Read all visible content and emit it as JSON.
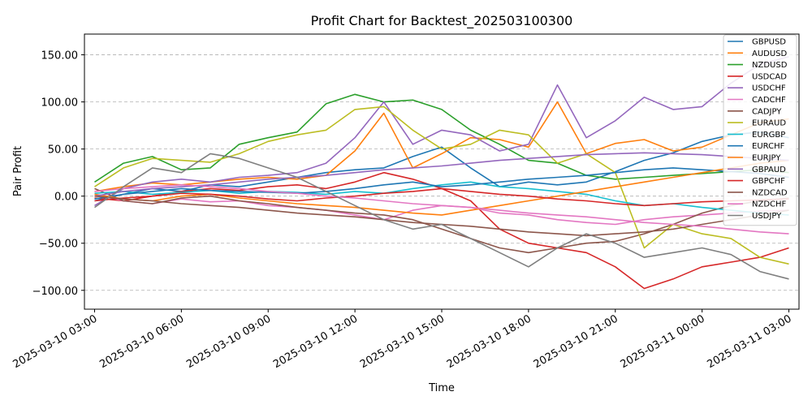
{
  "chart_data": {
    "type": "line",
    "title": "Profit Chart for Backtest_202503100300",
    "xlabel": "Time",
    "ylabel": "Pair Profit",
    "xlim": [
      -0.35,
      24.35
    ],
    "ylim": [
      -120,
      172
    ],
    "x_ticks": [
      {
        "value": 0,
        "label": "2025-03-10 03:00"
      },
      {
        "value": 3,
        "label": "2025-03-10 06:00"
      },
      {
        "value": 6,
        "label": "2025-03-10 09:00"
      },
      {
        "value": 9,
        "label": "2025-03-10 12:00"
      },
      {
        "value": 12,
        "label": "2025-03-10 15:00"
      },
      {
        "value": 15,
        "label": "2025-03-10 18:00"
      },
      {
        "value": 18,
        "label": "2025-03-10 21:00"
      },
      {
        "value": 21,
        "label": "2025-03-11 00:00"
      },
      {
        "value": 24,
        "label": "2025-03-11 03:00"
      }
    ],
    "y_ticks": [
      {
        "value": -100,
        "label": "−100.00"
      },
      {
        "value": -50,
        "label": "−50.00"
      },
      {
        "value": 0,
        "label": "0.00"
      },
      {
        "value": 50,
        "label": "50.00"
      },
      {
        "value": 100,
        "label": "100.00"
      },
      {
        "value": 150,
        "label": "150.00"
      }
    ],
    "grid": "y-dashed",
    "legend_position": "top-right",
    "series": [
      {
        "name": "GBPUSD",
        "color": "#1f77b4",
        "x": [
          0,
          1,
          2,
          3,
          4,
          5,
          6,
          7,
          8,
          9,
          10,
          11,
          12,
          13,
          14,
          15,
          16,
          17,
          18,
          19,
          20,
          21,
          22,
          23,
          24
        ],
        "y": [
          -5,
          2,
          8,
          5,
          12,
          10,
          15,
          20,
          25,
          28,
          30,
          42,
          52,
          30,
          10,
          15,
          12,
          15,
          26,
          38,
          46,
          58,
          65,
          68,
          62
        ]
      },
      {
        "name": "AUDUSD",
        "color": "#ff7f0e",
        "x": [
          0,
          1,
          2,
          3,
          4,
          5,
          6,
          7,
          8,
          9,
          10,
          11,
          12,
          13,
          14,
          15,
          16,
          17,
          18,
          19,
          20,
          21,
          22,
          23,
          24
        ],
        "y": [
          5,
          10,
          14,
          12,
          15,
          18,
          20,
          18,
          22,
          48,
          88,
          30,
          45,
          62,
          60,
          52,
          100,
          45,
          56,
          60,
          48,
          52,
          65,
          78,
          82
        ]
      },
      {
        "name": "NZDUSD",
        "color": "#2ca02c",
        "x": [
          0,
          1,
          2,
          3,
          4,
          5,
          6,
          7,
          8,
          9,
          10,
          11,
          12,
          13,
          14,
          15,
          16,
          17,
          18,
          19,
          20,
          21,
          22,
          23,
          24
        ],
        "y": [
          15,
          35,
          42,
          28,
          30,
          55,
          62,
          68,
          98,
          108,
          100,
          102,
          92,
          70,
          55,
          38,
          35,
          22,
          18,
          20,
          22,
          24,
          26,
          28,
          25
        ]
      },
      {
        "name": "USDCAD",
        "color": "#d62728",
        "x": [
          0,
          1,
          2,
          3,
          4,
          5,
          6,
          7,
          8,
          9,
          10,
          11,
          12,
          13,
          14,
          15,
          16,
          17,
          18,
          19,
          20,
          21,
          22,
          23,
          24
        ],
        "y": [
          -2,
          -5,
          0,
          5,
          8,
          6,
          10,
          12,
          8,
          15,
          25,
          18,
          8,
          -5,
          -35,
          -50,
          -55,
          -60,
          -75,
          -98,
          -88,
          -75,
          -70,
          -65,
          -55
        ]
      },
      {
        "name": "USDCHF",
        "color": "#9467bd",
        "x": [
          0,
          1,
          2,
          3,
          4,
          5,
          6,
          7,
          8,
          9,
          10,
          11,
          12,
          13,
          14,
          15,
          16,
          17,
          18,
          19,
          20,
          21,
          22,
          23,
          24
        ],
        "y": [
          -10,
          8,
          15,
          18,
          15,
          20,
          22,
          25,
          35,
          62,
          100,
          55,
          70,
          65,
          48,
          55,
          118,
          62,
          80,
          105,
          92,
          95,
          120,
          140,
          148
        ]
      },
      {
        "name": "CADCHF",
        "color": "#e377c2",
        "x": [
          0,
          1,
          2,
          3,
          4,
          5,
          6,
          7,
          8,
          9,
          10,
          11,
          12,
          13,
          14,
          15,
          16,
          17,
          18,
          19,
          20,
          21,
          22,
          23,
          24
        ],
        "y": [
          2,
          -5,
          -8,
          -3,
          -6,
          -5,
          -10,
          -12,
          -15,
          -20,
          -25,
          -15,
          -10,
          -12,
          -18,
          -20,
          -25,
          -28,
          -30,
          -25,
          -22,
          -20,
          -18,
          -16,
          -15
        ]
      },
      {
        "name": "CADJPY",
        "color": "#8c564b",
        "x": [
          0,
          1,
          2,
          3,
          4,
          5,
          6,
          7,
          8,
          9,
          10,
          11,
          12,
          13,
          14,
          15,
          16,
          17,
          18,
          19,
          20,
          21,
          22,
          23,
          24
        ],
        "y": [
          8,
          -5,
          -8,
          -2,
          0,
          -5,
          -8,
          -12,
          -15,
          -18,
          -20,
          -25,
          -35,
          -45,
          -55,
          -60,
          -55,
          -50,
          -48,
          -40,
          -30,
          -18,
          -10,
          -5,
          -2
        ]
      },
      {
        "name": "EURAUD",
        "color": "#bcbd22",
        "x": [
          0,
          1,
          2,
          3,
          4,
          5,
          6,
          7,
          8,
          9,
          10,
          11,
          12,
          13,
          14,
          15,
          16,
          17,
          18,
          19,
          20,
          21,
          22,
          23,
          24
        ],
        "y": [
          10,
          30,
          40,
          38,
          36,
          45,
          58,
          65,
          70,
          92,
          95,
          70,
          50,
          55,
          70,
          65,
          35,
          45,
          25,
          -55,
          -30,
          -40,
          -45,
          -65,
          -72
        ]
      },
      {
        "name": "EURGBP",
        "color": "#17becf",
        "x": [
          0,
          1,
          2,
          3,
          4,
          5,
          6,
          7,
          8,
          9,
          10,
          11,
          12,
          13,
          14,
          15,
          16,
          17,
          18,
          19,
          20,
          21,
          22,
          23,
          24
        ],
        "y": [
          3,
          5,
          2,
          4,
          6,
          3,
          5,
          4,
          2,
          5,
          3,
          8,
          12,
          15,
          10,
          8,
          5,
          2,
          -5,
          -10,
          -8,
          -12,
          -15,
          -18,
          -20
        ]
      },
      {
        "name": "EURCHF",
        "color": "#1f77b4",
        "x": [
          0,
          1,
          2,
          3,
          4,
          5,
          6,
          7,
          8,
          9,
          10,
          11,
          12,
          13,
          14,
          15,
          16,
          17,
          18,
          19,
          20,
          21,
          22,
          23,
          24
        ],
        "y": [
          -3,
          2,
          5,
          8,
          6,
          5,
          4,
          3,
          5,
          8,
          12,
          15,
          10,
          12,
          15,
          18,
          20,
          22,
          25,
          28,
          30,
          28,
          26,
          24,
          20
        ]
      },
      {
        "name": "EURJPY",
        "color": "#ff7f0e",
        "x": [
          0,
          1,
          2,
          3,
          4,
          5,
          6,
          7,
          8,
          9,
          10,
          11,
          12,
          13,
          14,
          15,
          16,
          17,
          18,
          19,
          20,
          21,
          22,
          23,
          24
        ],
        "y": [
          2,
          -3,
          -5,
          0,
          2,
          -2,
          -5,
          -8,
          -10,
          -12,
          -15,
          -18,
          -20,
          -15,
          -10,
          -5,
          0,
          5,
          10,
          15,
          20,
          25,
          30,
          35,
          38
        ]
      },
      {
        "name": "GBPAUD",
        "color": "#9467bd",
        "x": [
          0,
          1,
          2,
          3,
          4,
          5,
          6,
          7,
          8,
          9,
          10,
          11,
          12,
          13,
          14,
          15,
          16,
          17,
          18,
          19,
          20,
          21,
          22,
          23,
          24
        ],
        "y": [
          0,
          5,
          8,
          10,
          12,
          15,
          18,
          20,
          22,
          25,
          28,
          30,
          32,
          35,
          38,
          40,
          42,
          44,
          45,
          46,
          45,
          44,
          42,
          40,
          38
        ]
      },
      {
        "name": "GBPCHF",
        "color": "#d62728",
        "x": [
          0,
          1,
          2,
          3,
          4,
          5,
          6,
          7,
          8,
          9,
          10,
          11,
          12,
          13,
          14,
          15,
          16,
          17,
          18,
          19,
          20,
          21,
          22,
          23,
          24
        ],
        "y": [
          -5,
          -2,
          0,
          3,
          2,
          0,
          -3,
          -5,
          -2,
          0,
          3,
          5,
          8,
          5,
          2,
          0,
          -3,
          -5,
          -8,
          -10,
          -8,
          -6,
          -5,
          -4,
          -3
        ]
      },
      {
        "name": "NZDCAD",
        "color": "#8c564b",
        "x": [
          0,
          1,
          2,
          3,
          4,
          5,
          6,
          7,
          8,
          9,
          10,
          11,
          12,
          13,
          14,
          15,
          16,
          17,
          18,
          19,
          20,
          21,
          22,
          23,
          24
        ],
        "y": [
          0,
          -3,
          -5,
          -8,
          -10,
          -12,
          -15,
          -18,
          -20,
          -22,
          -25,
          -28,
          -30,
          -32,
          -35,
          -38,
          -40,
          -42,
          -40,
          -38,
          -35,
          -30,
          -25,
          -20,
          -15
        ]
      },
      {
        "name": "NZDCHF",
        "color": "#e377c2",
        "x": [
          0,
          1,
          2,
          3,
          4,
          5,
          6,
          7,
          8,
          9,
          10,
          11,
          12,
          13,
          14,
          15,
          16,
          17,
          18,
          19,
          20,
          21,
          22,
          23,
          24
        ],
        "y": [
          5,
          8,
          10,
          12,
          10,
          8,
          5,
          3,
          0,
          -2,
          -5,
          -8,
          -10,
          -12,
          -15,
          -18,
          -20,
          -22,
          -25,
          -28,
          -30,
          -32,
          -35,
          -38,
          -40
        ]
      },
      {
        "name": "USDJPY",
        "color": "#7f7f7f",
        "x": [
          0,
          1,
          2,
          3,
          4,
          5,
          6,
          7,
          8,
          9,
          10,
          11,
          12,
          13,
          14,
          15,
          16,
          17,
          18,
          19,
          20,
          21,
          22,
          23,
          24
        ],
        "y": [
          -12,
          10,
          30,
          25,
          45,
          40,
          30,
          20,
          5,
          -10,
          -25,
          -35,
          -30,
          -45,
          -60,
          -75,
          -55,
          -40,
          -50,
          -65,
          -60,
          -55,
          -62,
          -80,
          -88
        ]
      }
    ]
  }
}
